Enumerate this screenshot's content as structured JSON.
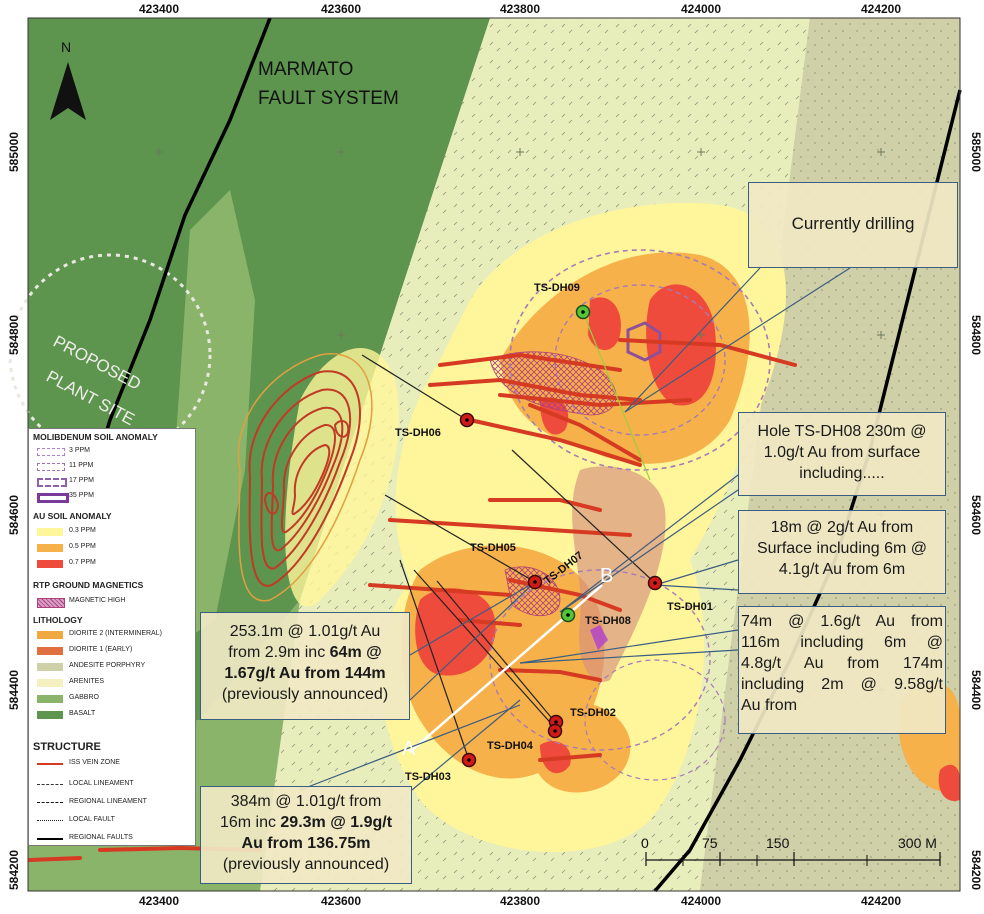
{
  "axes": {
    "x_top": [
      "423400",
      "423600",
      "423800",
      "424000",
      "424200"
    ],
    "x_bottom": [
      "423400",
      "423600",
      "423800",
      "424000",
      "424200"
    ],
    "y_left": [
      "585000",
      "584800",
      "584600",
      "584400",
      "584200"
    ],
    "y_right": [
      "585000",
      "584800",
      "584600",
      "584400",
      "584200"
    ]
  },
  "north": "N",
  "labels": {
    "fault_line1": "MARMATO",
    "fault_line2": "FAULT SYSTEM",
    "plant_line1": "PROPOSED",
    "plant_line2": "PLANT SITE",
    "section_a": "A",
    "section_b": "B"
  },
  "holes": [
    "TS-DH09",
    "TS-DH06",
    "TS-DH05",
    "TS-DH07",
    "TS-DH08",
    "TS-DH01",
    "TS-DH02",
    "TS-DH04",
    "TS-DH03"
  ],
  "callouts": {
    "drilling": "Currently drilling",
    "dh08_l1": "Hole TS-DH08  230m @",
    "dh08_l2": "1.0g/t Au from surface",
    "dh08_l3": "including.....",
    "dh01_l1": "18m @ 2g/t Au from",
    "dh01_l2": "Surface including 6m @",
    "dh01_l3": "4.1g/t Au from 6m",
    "dh02_l1": "74m  @  1.6g/t  Au  from",
    "dh02_l2": "116m  including  6m  @",
    "dh02_l3": "4.8g/t  Au  from  174m",
    "dh02_l4": "including 2m @ 9.58g/t",
    "dh02_l5": "Au from",
    "dh05_l1": "253.1m @ 1.01g/t Au",
    "dh05_l2a": "from 2.9m inc ",
    "dh05_l2b": "64m @",
    "dh05_l3": "1.67g/t Au from 144m",
    "dh05_l4": "(previously announced)",
    "dh03_l1": "384m @ 1.01g/t from",
    "dh03_l2a": "16m inc ",
    "dh03_l2b": "29.3m @ 1.9g/t",
    "dh03_l3": "Au from 136.75m",
    "dh03_l4": "(previously announced)"
  },
  "scale": {
    "ticks": [
      "0",
      "75",
      "150",
      "300 M"
    ]
  },
  "legend": {
    "moly_title": "MOLIBDENUM SOIL ANOMALY",
    "moly_items": [
      "3 PPM",
      "11 PPM",
      "17 PPM",
      "35 PPM"
    ],
    "au_title": "AU SOIL ANOMALY",
    "au_items": [
      "0.3 PPM",
      "0.5 PPM",
      "0.7 PPM"
    ],
    "rtp_title": "RTP GROUND MAGNETICS",
    "rtp_items": [
      "MAGNETIC HIGH"
    ],
    "lith_title": "LITHOLOGY",
    "lith_items": [
      "DIORITE 2 (INTERMINERAL)",
      "DIORITE 1 (EARLY)",
      "ANDESITE PORPHYRY",
      "ARENITES",
      "GABBRO",
      "BASALT"
    ],
    "struct_title": "STRUCTURE",
    "struct_items": [
      "ISS VEIN ZONE",
      "LOCAL LINEAMENT",
      "REGIONAL LINEAMENT",
      "LOCAL FAULT",
      "REGIONAL FAULTS"
    ]
  },
  "colors": {
    "basalt": "#5d944e",
    "gabbro": "#8ab46a",
    "arenites": "#e8edbc",
    "andesite": "#cfcfa8",
    "au_low": "#fff59a",
    "au_mid": "#f7b14a",
    "au_high": "#ef4b3c",
    "vein": "#d63a22",
    "callout_border": "#3a5d82"
  }
}
